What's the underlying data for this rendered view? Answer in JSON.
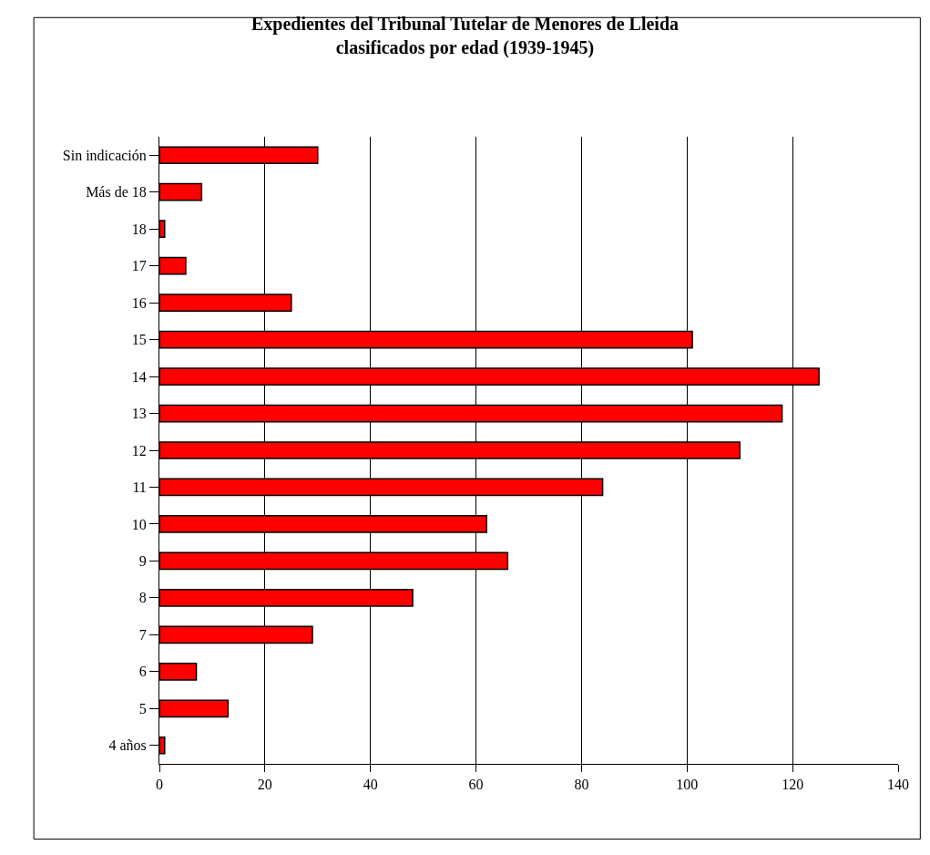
{
  "chart_data": {
    "type": "bar",
    "orientation": "horizontal",
    "title": "Expedientes del Tribunal Tutelar de Menores de Lleida\nclasificados por edad (1939-1945)",
    "categories": [
      "Sin indicación",
      "Más de 18",
      "18",
      "17",
      "16",
      "15",
      "14",
      "13",
      "12",
      "11",
      "10",
      "9",
      "8",
      "7",
      "6",
      "5",
      "4 años"
    ],
    "values": [
      30,
      8,
      1,
      5,
      25,
      101,
      125,
      118,
      110,
      84,
      62,
      66,
      48,
      29,
      7,
      13,
      1
    ],
    "color": "#ff0000",
    "xlim": [
      0,
      140
    ],
    "xticks": [
      0,
      20,
      40,
      60,
      80,
      100,
      120,
      140
    ],
    "grid": "x"
  }
}
